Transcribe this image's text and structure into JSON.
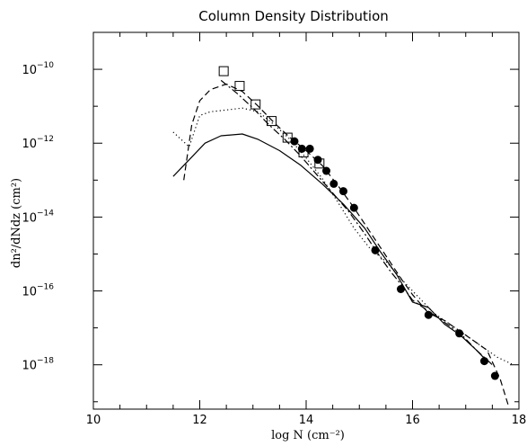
{
  "chart_data": {
    "type": "line",
    "title": "Column Density Distribution",
    "xlabel": "log N (cm⁻²)",
    "ylabel": "dn²/dNdz (cm²)",
    "xlim": [
      10,
      18
    ],
    "ylim_log10": [
      -19.2,
      -9.0
    ],
    "y_scale": "log",
    "x_ticks": [
      "10",
      "12",
      "14",
      "16",
      "18"
    ],
    "y_ticks": [
      {
        "base": "10",
        "exp": "−10",
        "value": -10
      },
      {
        "base": "10",
        "exp": "−12",
        "value": -12
      },
      {
        "base": "10",
        "exp": "−14",
        "value": -14
      },
      {
        "base": "10",
        "exp": "−16",
        "value": -16
      },
      {
        "base": "10",
        "exp": "−18",
        "value": -18
      }
    ],
    "series": [
      {
        "style": "solid",
        "x": [
          11.5,
          11.8,
          12.1,
          12.4,
          12.8,
          13.1,
          13.5,
          13.9,
          14.3,
          14.7,
          15.1,
          15.4,
          15.7,
          16.0,
          16.3,
          16.6,
          16.9,
          17.2,
          17.4
        ],
        "y": [
          -12.9,
          -12.45,
          -12.0,
          -11.8,
          -11.75,
          -11.9,
          -12.2,
          -12.6,
          -13.1,
          -13.65,
          -14.3,
          -14.95,
          -15.55,
          -16.3,
          -16.45,
          -16.9,
          -17.2,
          -17.6,
          -17.9
        ]
      },
      {
        "style": "dashed",
        "x": [
          11.7,
          11.85,
          12.0,
          12.2,
          12.5,
          12.8,
          13.1,
          13.4,
          13.7,
          14.0,
          14.3,
          14.6,
          14.9,
          15.2,
          15.5,
          15.8,
          16.0,
          16.3,
          16.6,
          17.0,
          17.4,
          17.65,
          17.8
        ],
        "y": [
          -13.0,
          -11.5,
          -10.85,
          -10.55,
          -10.4,
          -10.6,
          -11.0,
          -11.45,
          -11.85,
          -12.2,
          -12.6,
          -13.15,
          -13.75,
          -14.4,
          -15.05,
          -15.7,
          -16.1,
          -16.6,
          -16.8,
          -17.2,
          -17.6,
          -18.4,
          -19.1
        ]
      },
      {
        "style": "dotted",
        "x": [
          11.5,
          11.8,
          12.0,
          12.2,
          12.5,
          12.8,
          13.1,
          13.4,
          13.7,
          14.0,
          14.3,
          14.6,
          14.9,
          15.2,
          15.5,
          15.8,
          16.1,
          16.4,
          16.7,
          17.0,
          17.3,
          17.6,
          17.9
        ],
        "y": [
          -11.7,
          -12.1,
          -11.25,
          -11.15,
          -11.1,
          -11.05,
          -11.15,
          -11.5,
          -11.9,
          -12.4,
          -12.95,
          -13.6,
          -14.3,
          -14.85,
          -15.2,
          -15.7,
          -16.15,
          -16.6,
          -16.9,
          -17.2,
          -17.5,
          -17.8,
          -18.0
        ]
      },
      {
        "style": "dash-dot",
        "x": [
          12.4,
          12.7,
          13.0,
          13.3,
          13.6,
          13.9,
          14.2,
          14.5,
          14.8,
          15.1,
          15.4,
          15.6,
          15.8,
          16.0,
          16.3,
          16.6,
          16.9,
          17.2,
          17.5
        ],
        "y": [
          -10.3,
          -10.65,
          -11.05,
          -11.5,
          -11.9,
          -12.35,
          -12.85,
          -13.35,
          -13.85,
          -14.45,
          -15.1,
          -15.5,
          -15.85,
          -16.25,
          -16.55,
          -16.85,
          -17.15,
          -17.6,
          -18.0
        ]
      }
    ],
    "markers": [
      {
        "shape": "square",
        "x": [
          12.45,
          12.75,
          13.05,
          13.35,
          13.65,
          13.95,
          14.25
        ],
        "y": [
          -10.05,
          -10.45,
          -10.95,
          -11.4,
          -11.85,
          -12.25,
          -12.55
        ]
      },
      {
        "shape": "circle",
        "x": [
          13.78,
          13.92,
          14.07,
          14.22,
          14.38,
          14.52,
          14.7,
          14.9,
          15.3,
          15.78,
          16.3,
          16.88,
          17.35,
          17.55
        ],
        "y": [
          -11.95,
          -12.15,
          -12.15,
          -12.45,
          -12.75,
          -13.1,
          -13.3,
          -13.75,
          -14.9,
          -15.95,
          -16.65,
          -17.15,
          -17.9,
          -18.3
        ]
      }
    ]
  }
}
